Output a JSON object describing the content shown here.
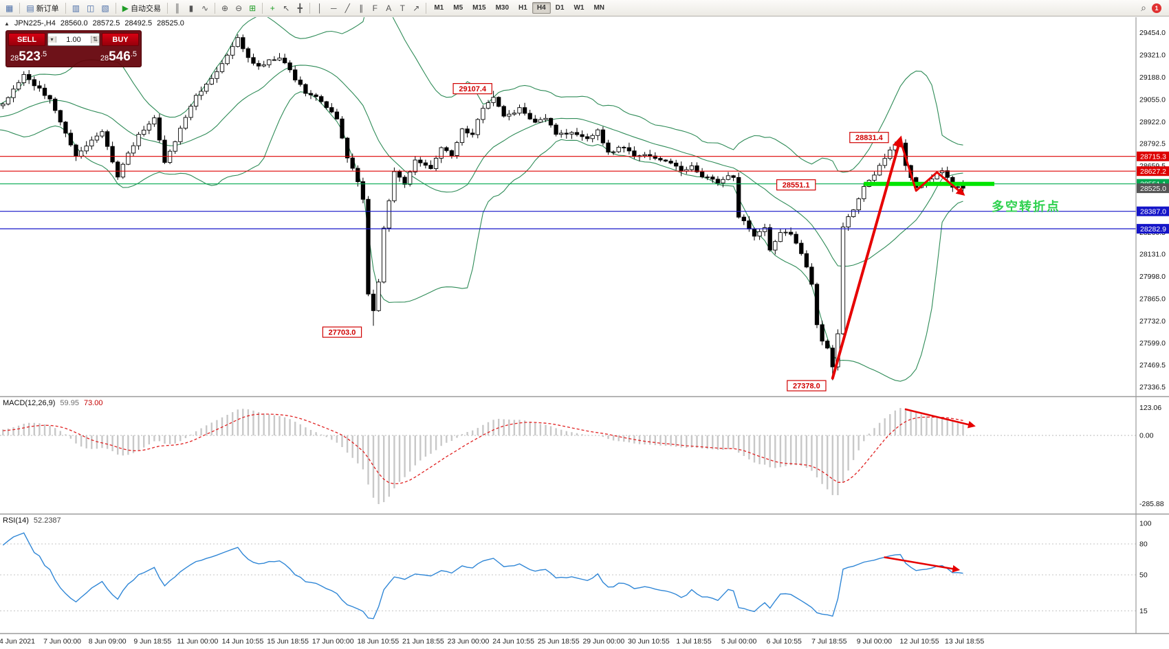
{
  "toolbar": {
    "groups": [
      {
        "items": [
          {
            "name": "new-chart",
            "glyph": "▦",
            "color": "#4a6da7"
          }
        ]
      },
      {
        "items": [
          {
            "name": "new-order",
            "glyph": "▤",
            "color": "#4a6da7",
            "label": "新订单"
          }
        ]
      },
      {
        "items": [
          {
            "name": "market-watch",
            "glyph": "▥",
            "color": "#4a6da7"
          },
          {
            "name": "navigator",
            "glyph": "◫",
            "color": "#4a6da7"
          },
          {
            "name": "terminal",
            "glyph": "▧",
            "color": "#4a6da7"
          }
        ]
      },
      {
        "items": [
          {
            "name": "autotrading",
            "glyph": "▶",
            "color": "#1f9d27",
            "label": "自动交易"
          }
        ]
      },
      {
        "items": [
          {
            "name": "bar-chart-mode",
            "glyph": "║",
            "color": "#555555"
          },
          {
            "name": "candlestick-mode",
            "glyph": "▮",
            "color": "#555555"
          },
          {
            "name": "line-chart-mode",
            "glyph": "∿",
            "color": "#555555"
          }
        ]
      },
      {
        "items": [
          {
            "name": "zoom-in",
            "glyph": "⊕",
            "color": "#555555"
          },
          {
            "name": "zoom-out",
            "glyph": "⊖",
            "color": "#555555"
          },
          {
            "name": "tile-windows",
            "glyph": "⊞",
            "color": "#1f9d27"
          }
        ]
      },
      {
        "items": [
          {
            "name": "indicators",
            "glyph": "+",
            "color": "#1f9d27"
          },
          {
            "name": "cursor",
            "glyph": "↖",
            "color": "#555555"
          },
          {
            "name": "crosshair",
            "glyph": "╋",
            "color": "#555555"
          }
        ]
      },
      {
        "items": [
          {
            "name": "vertical-line",
            "glyph": "│",
            "color": "#555555"
          },
          {
            "name": "horizontal-line",
            "glyph": "─",
            "color": "#555555"
          },
          {
            "name": "trendline",
            "glyph": "╱",
            "color": "#555555"
          },
          {
            "name": "equidistant-channel",
            "glyph": "∥",
            "color": "#555555"
          },
          {
            "name": "fibonacci",
            "glyph": "F",
            "color": "#555555"
          },
          {
            "name": "text",
            "glyph": "A",
            "color": "#555555"
          },
          {
            "name": "text-label",
            "glyph": "T",
            "color": "#555555"
          },
          {
            "name": "arrows-tool",
            "glyph": "↗",
            "color": "#555555"
          }
        ]
      },
      {
        "timeframes": true,
        "items": [
          {
            "name": "tf-m1",
            "label": "M1"
          },
          {
            "name": "tf-m5",
            "label": "M5"
          },
          {
            "name": "tf-m15",
            "label": "M15"
          },
          {
            "name": "tf-m30",
            "label": "M30"
          },
          {
            "name": "tf-h1",
            "label": "H1"
          },
          {
            "name": "tf-h4",
            "label": "H4",
            "active": true
          },
          {
            "name": "tf-d1",
            "label": "D1"
          },
          {
            "name": "tf-w1",
            "label": "W1"
          },
          {
            "name": "tf-mn",
            "label": "MN"
          }
        ]
      }
    ],
    "right": {
      "search_glyph": "⌕",
      "notification_count": "1"
    }
  },
  "chart_header": {
    "symbol": "JPN225-,H4",
    "open": "28560.0",
    "high": "28572.5",
    "low": "28492.5",
    "close": "28525.0"
  },
  "one_click": {
    "sell_label": "SELL",
    "buy_label": "BUY",
    "volume": "1.00",
    "sell_price": "28523.5",
    "buy_price": "28546.5"
  },
  "chart_data": {
    "type": "candlestick",
    "symbol": "JPN225-",
    "timeframe": "H4",
    "ohlc_current": {
      "open": 28560.0,
      "high": 28572.5,
      "low": 28492.5,
      "close": 28525.0
    },
    "candle_count": 185,
    "price_waypoints": [
      [
        -30,
        28850
      ],
      [
        -22,
        28980
      ],
      [
        -15,
        28890
      ],
      [
        -8,
        28960
      ],
      [
        0,
        29020
      ],
      [
        4,
        29200
      ],
      [
        9,
        29060
      ],
      [
        14,
        28720
      ],
      [
        19,
        28860
      ],
      [
        22,
        28600
      ],
      [
        26,
        28850
      ],
      [
        29,
        28940
      ],
      [
        31,
        28670
      ],
      [
        34,
        28880
      ],
      [
        37,
        29070
      ],
      [
        41,
        29230
      ],
      [
        45,
        29420
      ],
      [
        47,
        29300
      ],
      [
        49,
        29260
      ],
      [
        53,
        29310
      ],
      [
        56,
        29180
      ],
      [
        58,
        29090
      ],
      [
        61,
        29050
      ],
      [
        64,
        28940
      ],
      [
        66,
        28710
      ],
      [
        68,
        28560
      ],
      [
        69,
        28460
      ],
      [
        70,
        27900
      ],
      [
        71,
        27790
      ],
      [
        72,
        27960
      ],
      [
        73,
        28290
      ],
      [
        75,
        28620
      ],
      [
        77,
        28550
      ],
      [
        79,
        28690
      ],
      [
        82,
        28640
      ],
      [
        84,
        28760
      ],
      [
        86,
        28730
      ],
      [
        88,
        28870
      ],
      [
        90,
        28850
      ],
      [
        92,
        29010
      ],
      [
        94,
        29060
      ],
      [
        96,
        28950
      ],
      [
        99,
        29000
      ],
      [
        102,
        28910
      ],
      [
        104,
        28950
      ],
      [
        106,
        28840
      ],
      [
        109,
        28860
      ],
      [
        112,
        28830
      ],
      [
        114,
        28870
      ],
      [
        116,
        28740
      ],
      [
        119,
        28770
      ],
      [
        121,
        28720
      ],
      [
        124,
        28720
      ],
      [
        127,
        28690
      ],
      [
        130,
        28630
      ],
      [
        132,
        28660
      ],
      [
        134,
        28600
      ],
      [
        137,
        28560
      ],
      [
        139,
        28600
      ],
      [
        140,
        28590
      ],
      [
        141,
        28360
      ],
      [
        143,
        28290
      ],
      [
        144,
        28230
      ],
      [
        146,
        28290
      ],
      [
        147,
        28150
      ],
      [
        149,
        28270
      ],
      [
        151,
        28250
      ],
      [
        153,
        28140
      ],
      [
        155,
        27960
      ],
      [
        156,
        27700
      ],
      [
        157,
        27620
      ],
      [
        158,
        27560
      ],
      [
        159,
        27460
      ],
      [
        160,
        27660
      ],
      [
        161,
        28300
      ],
      [
        163,
        28400
      ],
      [
        165,
        28540
      ],
      [
        167,
        28610
      ],
      [
        169,
        28710
      ],
      [
        171,
        28780
      ],
      [
        172,
        28790
      ],
      [
        173,
        28670
      ],
      [
        175,
        28520
      ],
      [
        177,
        28560
      ],
      [
        179,
        28610
      ],
      [
        180,
        28630
      ],
      [
        182,
        28540
      ],
      [
        184,
        28525
      ]
    ],
    "anchor_extremes": [
      {
        "candle": 45,
        "type": "high",
        "price": 29445.0
      },
      {
        "candle": 71,
        "type": "low",
        "price": 27703.0
      },
      {
        "candle": 94,
        "type": "high",
        "price": 29107.4
      },
      {
        "candle": 159,
        "type": "low",
        "price": 27378.0
      },
      {
        "candle": 172,
        "type": "high",
        "price": 28831.4
      }
    ],
    "bollinger": {
      "period": 20,
      "deviation": 2,
      "color": "#2e8b57"
    },
    "price_axis_labels": [
      "29454.0",
      "29321.0",
      "29188.0",
      "29055.0",
      "28922.0",
      "28792.5",
      "28659.5",
      "28526.5",
      "28393.5",
      "28260.5",
      "28131.0",
      "27998.0",
      "27865.0",
      "27732.0",
      "27599.0",
      "27469.5",
      "27336.5"
    ],
    "horizontal_lines": [
      {
        "price": 28715.3,
        "color": "#dd0000"
      },
      {
        "price": 28627.2,
        "color": "#dd0000"
      },
      {
        "price": 28551.1,
        "color": "#00a84f"
      },
      {
        "price": 28387.0,
        "color": "#1515c8"
      },
      {
        "price": 28282.9,
        "color": "#1515c8"
      }
    ],
    "price_badges": [
      {
        "text": "28715.3",
        "price": 28715.3,
        "color": "#dd0000"
      },
      {
        "text": "28627.2",
        "price": 28627.2,
        "color": "#dd0000"
      },
      {
        "text": "28551.1",
        "price": 28551.1,
        "color": "#00a84f"
      },
      {
        "text": "28525.0",
        "price": 28525.0,
        "color": "#555555"
      },
      {
        "text": "28387.0",
        "price": 28387.0,
        "color": "#1515c8"
      },
      {
        "text": "28282.9",
        "price": 28282.9,
        "color": "#1515c8"
      }
    ],
    "callouts": [
      {
        "text": "29107.4",
        "candle": 90,
        "price": 29120
      },
      {
        "text": "28831.4",
        "candle": 166,
        "price": 28828
      },
      {
        "text": "28551.1",
        "candle": 152,
        "price": 28545
      },
      {
        "text": "27703.0",
        "candle": 65,
        "price": 27665
      },
      {
        "text": "27378.0",
        "candle": 154,
        "price": 27345
      }
    ],
    "highlight_segment": {
      "price": 28551.1,
      "from_candle": 165,
      "to_candle": 190,
      "color": "#00e400",
      "width": 6
    },
    "annotation": {
      "text": "多空转折点",
      "color": "#2fd14f"
    },
    "arrow_color": "#e60000",
    "trend_arrows": [
      {
        "points": [
          [
            159,
            27390
          ],
          [
            172,
            28820
          ]
        ],
        "width": 4
      },
      {
        "points": [
          [
            172,
            28810
          ],
          [
            175,
            28510
          ],
          [
            179,
            28620
          ],
          [
            184,
            28490
          ]
        ],
        "width": 3
      }
    ],
    "macd": {
      "label": "MACD(12,26,9)",
      "value_main": "59.95",
      "value_signal": "73.00",
      "axis_labels": [
        {
          "text": "123.06",
          "pos": "max"
        },
        {
          "text": "0.00",
          "pos": "zero"
        },
        {
          "text": "-285.88",
          "pos": "min"
        }
      ],
      "histogram_color": "#c8c8c8",
      "signal_color": "#e02020",
      "arrow": {
        "from": [
          173,
          0.95
        ],
        "to": [
          186,
          0.35
        ],
        "unit": "fraction_of_max"
      }
    },
    "rsi": {
      "label": "RSI(14)",
      "value": "52.2387",
      "axis_labels": [
        "100",
        "80",
        "50",
        "15"
      ],
      "levels": [
        80,
        50,
        15
      ],
      "line_color": "#2f86d6",
      "arrow": {
        "from": [
          169,
          67
        ],
        "to": [
          183,
          55
        ]
      }
    },
    "time_axis": [
      "4 Jun 2021",
      "7 Jun 00:00",
      "8 Jun 09:00",
      "9 Jun 18:55",
      "11 Jun 00:00",
      "14 Jun 10:55",
      "15 Jun 18:55",
      "17 Jun 00:00",
      "18 Jun 10:55",
      "21 Jun 18:55",
      "23 Jun 00:00",
      "24 Jun 10:55",
      "25 Jun 18:55",
      "29 Jun 00:00",
      "30 Jun 10:55",
      "1 Jul 18:55",
      "5 Jul 00:00",
      "6 Jul 10:55",
      "7 Jul 18:55",
      "9 Jul 00:00",
      "12 Jul 10:55",
      "13 Jul 18:55"
    ]
  }
}
